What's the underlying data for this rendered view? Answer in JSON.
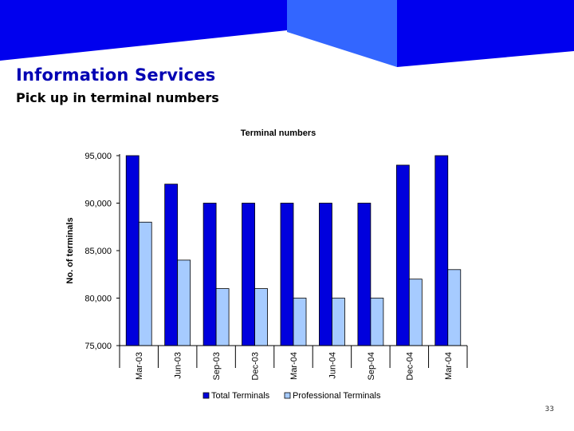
{
  "slide": {
    "title": "Information Services",
    "subtitle": "Pick up in terminal numbers",
    "page_number": "33"
  },
  "colors": {
    "banner_dark": "#0000ee",
    "banner_light": "#3366ff",
    "title_blue": "#0000b3",
    "series_total": "#0000dd",
    "series_professional": "#a6cbff"
  },
  "chart_data": {
    "type": "bar",
    "title": "Terminal numbers",
    "xlabel": "",
    "ylabel": "No. of terminals",
    "ylim": [
      75000,
      95000
    ],
    "yticks": [
      75000,
      80000,
      85000,
      90000,
      95000
    ],
    "ytick_labels": [
      "75,000",
      "80,000",
      "85,000",
      "90,000",
      "95,000"
    ],
    "categories": [
      "Mar-03",
      "Jun-03",
      "Sep-03",
      "Dec-03",
      "Mar-04",
      "Jun-04",
      "Sep-04",
      "Dec-04",
      "Mar-04"
    ],
    "series": [
      {
        "name": "Total Terminals",
        "values": [
          95000,
          92000,
          90000,
          90000,
          90000,
          90000,
          90000,
          94000,
          95000
        ]
      },
      {
        "name": "Professional Terminals",
        "values": [
          88000,
          84000,
          81000,
          81000,
          80000,
          80000,
          80000,
          82000,
          83000
        ]
      }
    ],
    "legend": "bottom",
    "grid": false
  }
}
